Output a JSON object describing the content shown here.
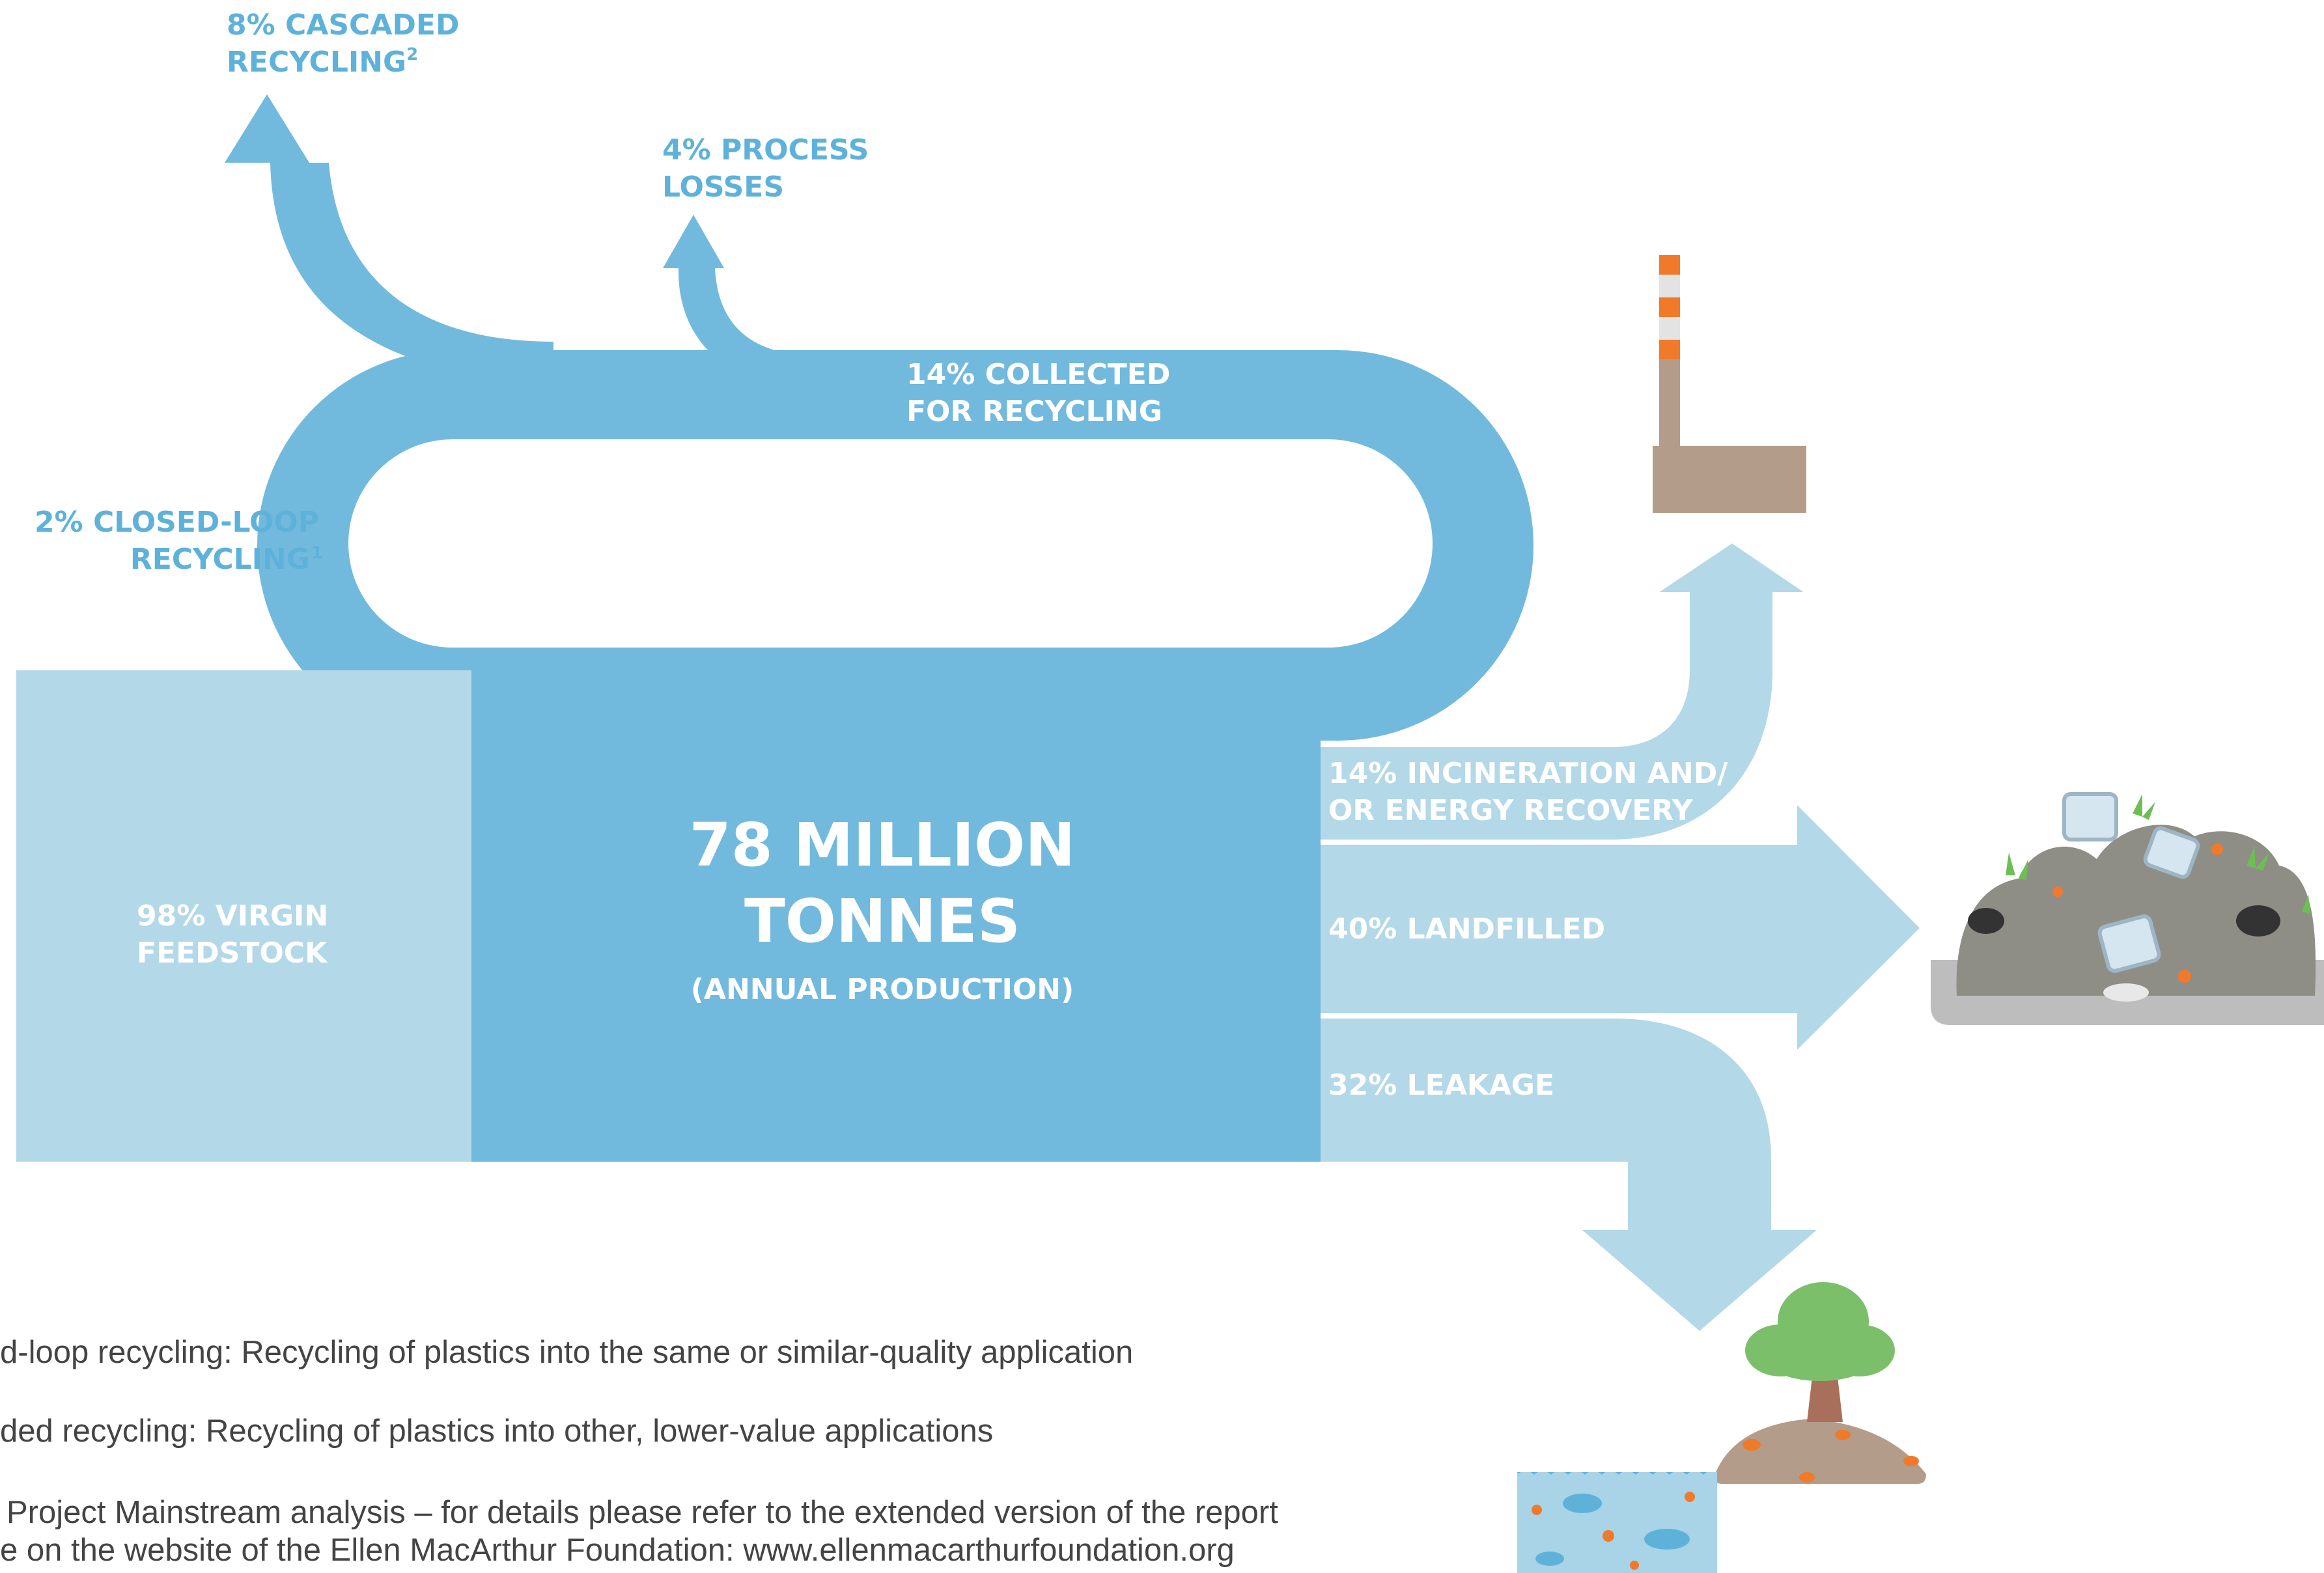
{
  "colors": {
    "primary_flow": "#72BADD",
    "secondary_flow": "#B3D8E7",
    "label_blue": "#5EB2DA",
    "text_white": "#FFFFFF",
    "footnote_text": "#444444",
    "chimney": "#B49C8A",
    "chimney_stripe": "#F07A2A",
    "landfill": "#8E8E86",
    "tree_canopy": "#7CBF6A",
    "tree_trunk": "#A8705A",
    "water": "#A9D3E6"
  },
  "diagram": {
    "center": {
      "value": "78 MILLION",
      "unit": "TONNES",
      "caption": "(ANNUAL PRODUCTION)"
    },
    "inputs": [
      {
        "line1": "98% VIRGIN",
        "line2": "FEEDSTOCK",
        "percent": 98
      }
    ],
    "loop": {
      "collected": {
        "line1": "14% COLLECTED",
        "line2": "FOR RECYCLING",
        "percent": 14
      },
      "closed_loop": {
        "line1": "2% CLOSED-LOOP",
        "line2": "RECYCLING",
        "sup": "1",
        "percent": 2
      },
      "cascaded": {
        "line1": "8% CASCADED",
        "line2": "RECYCLING",
        "sup": "2",
        "percent": 8
      },
      "losses": {
        "line1": "4% PROCESS",
        "line2": "LOSSES",
        "percent": 4
      }
    },
    "outputs": [
      {
        "line1": "14% INCINERATION AND/",
        "line2": "OR ENERGY RECOVERY",
        "percent": 14,
        "icon": "factory-chimney-icon"
      },
      {
        "line1": "40% LANDFILLED",
        "percent": 40,
        "icon": "landfill-pile-icon"
      },
      {
        "line1": "32% LEAKAGE",
        "percent": 32,
        "icon": "island-ocean-icon"
      }
    ]
  },
  "footnotes": [
    "d-loop recycling: Recycling of plastics into the same or similar-quality application",
    "ded recycling: Recycling of plastics into other, lower-value applications",
    "Project Mainstream analysis – for details please refer to the extended version of the report",
    "e on the website of the Ellen MacArthur Foundation: www.ellenmacarthurfoundation.org"
  ]
}
